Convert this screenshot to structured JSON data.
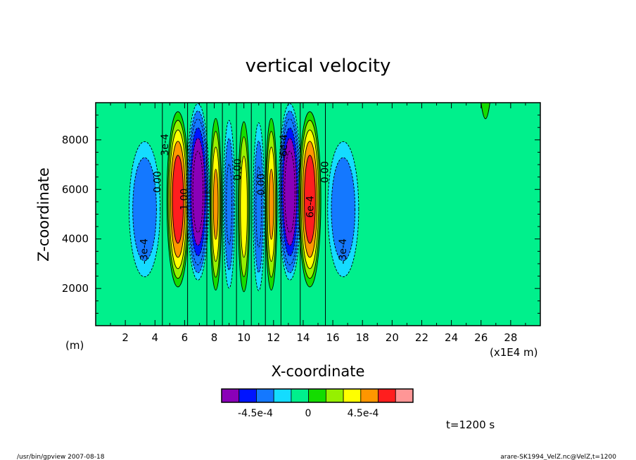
{
  "chart_data": {
    "type": "contour",
    "title": "vertical velocity",
    "xlabel": "X-coordinate",
    "ylabel": "Z-coordinate",
    "x_unit_left": "(m)",
    "x_unit_right": "(x1E4 m)",
    "xlim": [
      0,
      30
    ],
    "ylim": [
      500,
      9500
    ],
    "x_ticks": [
      2,
      4,
      6,
      8,
      10,
      12,
      14,
      16,
      18,
      20,
      22,
      24,
      26,
      28
    ],
    "y_ticks": [
      2000,
      4000,
      6000,
      8000
    ],
    "colorbar": {
      "colors": [
        "#8a00b8",
        "#0014ff",
        "#1478ff",
        "#14dcff",
        "#00f08c",
        "#14dc00",
        "#96f000",
        "#ffff00",
        "#ff9600",
        "#ff1e1e",
        "#ff9696"
      ],
      "labels": [
        "-4.5e-4",
        "0",
        "4.5e-4"
      ]
    },
    "contour_labels": [
      "-3e-4",
      "-3e-4",
      "0.00",
      "0.00",
      "0.00",
      "3e-4",
      "6e-4",
      "1.00",
      "-6e-4",
      "0.00"
    ],
    "time_label": "t=1200 s",
    "cells": [
      {
        "xc": 3.3,
        "zc": 5200,
        "value": -4.6
      },
      {
        "xc": 5.55,
        "zc": 5600,
        "value": 10.5
      },
      {
        "xc": 6.9,
        "zc": 5900,
        "value": -12.5
      },
      {
        "xc": 8.1,
        "zc": 5400,
        "value": 7
      },
      {
        "xc": 9.0,
        "zc": 5400,
        "value": -5
      },
      {
        "xc": 10.0,
        "zc": 5300,
        "value": 6
      },
      {
        "xc": 11.0,
        "zc": 5300,
        "value": -5
      },
      {
        "xc": 11.85,
        "zc": 5400,
        "value": 7
      },
      {
        "xc": 13.1,
        "zc": 5900,
        "value": -12.5
      },
      {
        "xc": 14.45,
        "zc": 5600,
        "value": 10.5
      },
      {
        "xc": 16.7,
        "zc": 5200,
        "value": -4.6
      }
    ]
  },
  "footer": {
    "left": "/usr/bin/gpview   2007-08-18",
    "right": "arare-SK1994_VelZ.nc@VelZ,t=1200"
  }
}
